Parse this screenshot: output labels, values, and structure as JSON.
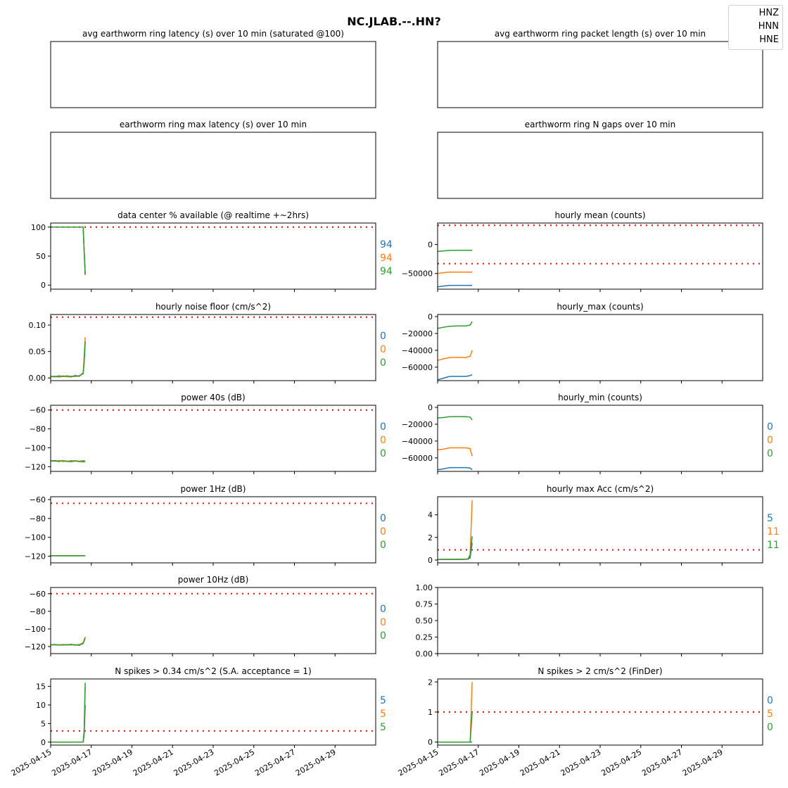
{
  "title": "NC.JLAB.--.HN?",
  "legend": [
    "HNZ",
    "HNN",
    "HNE"
  ],
  "colors": {
    "HNZ": "#1f77b4",
    "HNN": "#ff7f0e",
    "HNE": "#2ca02c",
    "threshold": "#ff0000"
  },
  "x_dates": [
    "2025-04-15",
    "2025-04-17",
    "2025-04-19",
    "2025-04-21",
    "2025-04-23",
    "2025-04-25",
    "2025-04-27",
    "2025-04-29"
  ],
  "chart_data": [
    {
      "type": "line",
      "title": "avg earthworm ring latency (s)   over 10 min (saturated @100)",
      "empty": true,
      "ticks": [],
      "series": [],
      "labels": []
    },
    {
      "type": "line",
      "title": "avg earthworm ring packet length (s)   over 10 min",
      "empty": true,
      "ticks": [],
      "series": [],
      "labels": []
    },
    {
      "type": "line",
      "title": "earthworm ring max latency (s)   over 10 min",
      "empty": true,
      "ticks": [],
      "series": [],
      "labels": []
    },
    {
      "type": "line",
      "title": "earthworm ring N gaps   over 10 min",
      "empty": true,
      "ticks": [],
      "series": [],
      "labels": []
    },
    {
      "type": "line",
      "title": "data center % available (@ realtime +~2hrs)",
      "ylim": [
        -7,
        107
      ],
      "ticks": [
        {
          "v": 0,
          "t": "0"
        },
        {
          "v": 50,
          "t": "50"
        },
        {
          "v": 100,
          "t": "100"
        }
      ],
      "threshold": [
        100
      ],
      "series": [
        {
          "x": [
            0,
            0.25,
            0.5,
            0.75,
            1.0,
            1.25,
            1.5,
            1.6,
            1.65,
            1.7
          ],
          "y": [
            100,
            100,
            100,
            100,
            100,
            100,
            100,
            100,
            60,
            18
          ]
        },
        {
          "x": [
            0,
            0.25,
            0.5,
            0.75,
            1.0,
            1.25,
            1.5,
            1.6,
            1.65,
            1.7
          ],
          "y": [
            100,
            100,
            100,
            100,
            100,
            100,
            100,
            100,
            60,
            18
          ]
        },
        {
          "x": [
            0,
            0.25,
            0.5,
            0.75,
            1.0,
            1.25,
            1.5,
            1.6,
            1.65,
            1.7
          ],
          "y": [
            100,
            100,
            100,
            100,
            100,
            100,
            100,
            100,
            60,
            18
          ]
        }
      ],
      "labels": [
        "94",
        "94",
        "94"
      ]
    },
    {
      "type": "line",
      "title": "hourly mean (counts)",
      "ylim": [
        -77000,
        37000
      ],
      "ticks": [
        {
          "v": -50000,
          "t": "−50000"
        },
        {
          "v": 0,
          "t": "0"
        }
      ],
      "threshold": [
        33000,
        -33000
      ],
      "series": [
        {
          "x": [
            0,
            0.3,
            0.6,
            1.0,
            1.4,
            1.7
          ],
          "y": [
            -73000,
            -71500,
            -70500,
            -70500,
            -70500,
            -70500
          ]
        },
        {
          "x": [
            0,
            0.3,
            0.6,
            1.0,
            1.4,
            1.7
          ],
          "y": [
            -50000,
            -48500,
            -47500,
            -47500,
            -47500,
            -47500
          ]
        },
        {
          "x": [
            0,
            0.3,
            0.6,
            1.0,
            1.4,
            1.7
          ],
          "y": [
            -12000,
            -11000,
            -10200,
            -10000,
            -10000,
            -10000
          ]
        }
      ],
      "labels": []
    },
    {
      "type": "line",
      "title": "hourly noise floor (cm/s^2)",
      "ylim": [
        -0.005,
        0.12
      ],
      "ticks": [
        {
          "v": 0,
          "t": "0.00"
        },
        {
          "v": 0.05,
          "t": "0.05"
        },
        {
          "v": 0.1,
          "t": "0.10"
        }
      ],
      "threshold": [
        0.115
      ],
      "series": [
        {
          "x": [
            0,
            0.2,
            0.4,
            0.6,
            0.8,
            1.0,
            1.2,
            1.4,
            1.6,
            1.65,
            1.7
          ],
          "y": [
            0.003,
            0.002,
            0.004,
            0.003,
            0.003,
            0.002,
            0.005,
            0.003,
            0.009,
            0.03,
            0.07
          ]
        },
        {
          "x": [
            0,
            0.2,
            0.4,
            0.6,
            0.8,
            1.0,
            1.2,
            1.4,
            1.6,
            1.65,
            1.7
          ],
          "y": [
            0.002,
            0.003,
            0.003,
            0.004,
            0.002,
            0.003,
            0.004,
            0.003,
            0.01,
            0.04,
            0.077
          ]
        },
        {
          "x": [
            0,
            0.2,
            0.4,
            0.6,
            0.8,
            1.0,
            1.2,
            1.4,
            1.6,
            1.65,
            1.7
          ],
          "y": [
            0.003,
            0.003,
            0.002,
            0.003,
            0.004,
            0.003,
            0.003,
            0.004,
            0.008,
            0.03,
            0.068
          ]
        }
      ],
      "labels": [
        "0",
        "0",
        "0"
      ]
    },
    {
      "type": "line",
      "title": "hourly_max (counts)",
      "ylim": [
        -76000,
        2500
      ],
      "ticks": [
        {
          "v": -60000,
          "t": "−60000"
        },
        {
          "v": -40000,
          "t": "−40000"
        },
        {
          "v": -20000,
          "t": "−20000"
        },
        {
          "v": 0,
          "t": "0"
        }
      ],
      "threshold": [],
      "series": [
        {
          "x": [
            0,
            0.3,
            0.6,
            1.0,
            1.4,
            1.6,
            1.7
          ],
          "y": [
            -75000,
            -73000,
            -71000,
            -71000,
            -71000,
            -70000,
            -69000
          ]
        },
        {
          "x": [
            0,
            0.3,
            0.6,
            1.0,
            1.4,
            1.6,
            1.7
          ],
          "y": [
            -52000,
            -50000,
            -48500,
            -48500,
            -48500,
            -47000,
            -40000
          ]
        },
        {
          "x": [
            0,
            0.3,
            0.6,
            1.0,
            1.4,
            1.6,
            1.7
          ],
          "y": [
            -14000,
            -12500,
            -11500,
            -11000,
            -11000,
            -10000,
            -6000
          ]
        }
      ],
      "labels": []
    },
    {
      "type": "line",
      "title": "power 40s (dB)",
      "ylim": [
        -125,
        -55
      ],
      "ticks": [
        {
          "v": -120,
          "t": "−120"
        },
        {
          "v": -100,
          "t": "−100"
        },
        {
          "v": -80,
          "t": "−80"
        },
        {
          "v": -60,
          "t": "−60"
        }
      ],
      "threshold": [
        -60
      ],
      "series": [
        {
          "x": [
            0,
            0.2,
            0.4,
            0.6,
            0.8,
            1.0,
            1.2,
            1.4,
            1.6,
            1.7
          ],
          "y": [
            -114,
            -113.5,
            -114.2,
            -113.8,
            -114.5,
            -113.6,
            -114.1,
            -114.4,
            -113.7,
            -114
          ]
        },
        {
          "x": [
            0,
            0.2,
            0.4,
            0.6,
            0.8,
            1.0,
            1.2,
            1.4,
            1.6,
            1.7
          ],
          "y": [
            -113.6,
            -114.3,
            -113.4,
            -114.6,
            -113.9,
            -114.2,
            -113.5,
            -114.8,
            -114,
            -113.8
          ]
        },
        {
          "x": [
            0,
            0.2,
            0.4,
            0.6,
            0.8,
            1.0,
            1.2,
            1.4,
            1.6,
            1.7
          ],
          "y": [
            -114.2,
            -113.8,
            -114.6,
            -113.5,
            -114.3,
            -114.7,
            -113.9,
            -114.2,
            -115,
            -114.4
          ]
        }
      ],
      "labels": [
        "0",
        "0",
        "0"
      ]
    },
    {
      "type": "line",
      "title": "hourly_min (counts)",
      "ylim": [
        -76000,
        2500
      ],
      "ticks": [
        {
          "v": -60000,
          "t": "−60000"
        },
        {
          "v": -40000,
          "t": "−40000"
        },
        {
          "v": -20000,
          "t": "−20000"
        },
        {
          "v": 0,
          "t": "0"
        }
      ],
      "threshold": [],
      "series": [
        {
          "x": [
            0,
            0.3,
            0.6,
            1.0,
            1.4,
            1.6,
            1.7
          ],
          "y": [
            -74000,
            -73000,
            -71500,
            -71500,
            -71500,
            -72000,
            -74000
          ]
        },
        {
          "x": [
            0,
            0.3,
            0.6,
            1.0,
            1.4,
            1.6,
            1.7
          ],
          "y": [
            -50500,
            -49500,
            -48000,
            -48000,
            -48000,
            -49000,
            -58000
          ]
        },
        {
          "x": [
            0,
            0.3,
            0.6,
            1.0,
            1.4,
            1.6,
            1.7
          ],
          "y": [
            -12500,
            -12000,
            -11000,
            -11000,
            -11000,
            -11500,
            -15000
          ]
        }
      ],
      "labels": [
        "0",
        "0",
        "0"
      ]
    },
    {
      "type": "line",
      "title": "power 1Hz (dB)",
      "ylim": [
        -127,
        -57
      ],
      "ticks": [
        {
          "v": -120,
          "t": "−120"
        },
        {
          "v": -100,
          "t": "−100"
        },
        {
          "v": -80,
          "t": "−80"
        },
        {
          "v": -60,
          "t": "−60"
        }
      ],
      "threshold": [
        -64
      ],
      "series": [
        {
          "x": [
            0,
            0.5,
            1.0,
            1.5,
            1.7
          ],
          "y": [
            -119.5,
            -119.5,
            -119.5,
            -119.5,
            -119.5
          ]
        },
        {
          "x": [
            0,
            0.5,
            1.0,
            1.5,
            1.7
          ],
          "y": [
            -119.5,
            -119.5,
            -119.5,
            -119.5,
            -119.5
          ]
        },
        {
          "x": [
            0,
            0.5,
            1.0,
            1.5,
            1.7
          ],
          "y": [
            -119.5,
            -119.5,
            -119.5,
            -119.5,
            -119.5
          ]
        }
      ],
      "labels": [
        "0",
        "0",
        "0"
      ]
    },
    {
      "type": "line",
      "title": "hourly max Acc (cm/s^2)",
      "ylim": [
        -0.25,
        5.6
      ],
      "ticks": [
        {
          "v": 0,
          "t": "0"
        },
        {
          "v": 2,
          "t": "2"
        },
        {
          "v": 4,
          "t": "4"
        }
      ],
      "threshold": [
        0.9
      ],
      "series": [
        {
          "x": [
            0,
            0.3,
            0.6,
            0.9,
            1.2,
            1.5,
            1.6,
            1.7
          ],
          "y": [
            0.05,
            0.06,
            0.05,
            0.07,
            0.06,
            0.08,
            0.2,
            1.5
          ]
        },
        {
          "x": [
            0,
            0.3,
            0.6,
            0.9,
            1.2,
            1.5,
            1.6,
            1.7
          ],
          "y": [
            0.06,
            0.05,
            0.07,
            0.06,
            0.05,
            0.1,
            0.5,
            5.3
          ]
        },
        {
          "x": [
            0,
            0.3,
            0.6,
            0.9,
            1.2,
            1.5,
            1.6,
            1.7
          ],
          "y": [
            0.05,
            0.06,
            0.06,
            0.05,
            0.07,
            0.09,
            0.4,
            2.1
          ]
        }
      ],
      "labels": [
        "5",
        "11",
        "11"
      ]
    },
    {
      "type": "line",
      "title": "power 10Hz (dB)",
      "ylim": [
        -128,
        -53
      ],
      "ticks": [
        {
          "v": -120,
          "t": "−120"
        },
        {
          "v": -100,
          "t": "−100"
        },
        {
          "v": -80,
          "t": "−80"
        },
        {
          "v": -60,
          "t": "−60"
        }
      ],
      "threshold": [
        -60
      ],
      "series": [
        {
          "x": [
            0,
            0.2,
            0.4,
            0.6,
            0.8,
            1.0,
            1.2,
            1.4,
            1.6,
            1.7
          ],
          "y": [
            -118,
            -117.6,
            -118.3,
            -117.8,
            -118.1,
            -117.5,
            -118.4,
            -117.9,
            -116,
            -110
          ]
        },
        {
          "x": [
            0,
            0.2,
            0.4,
            0.6,
            0.8,
            1.0,
            1.2,
            1.4,
            1.6,
            1.7
          ],
          "y": [
            -117.7,
            -118.2,
            -117.9,
            -118.5,
            -117.6,
            -118.2,
            -117.8,
            -118.3,
            -115.5,
            -109
          ]
        },
        {
          "x": [
            0,
            0.2,
            0.4,
            0.6,
            0.8,
            1.0,
            1.2,
            1.4,
            1.6,
            1.7
          ],
          "y": [
            -118.2,
            -117.9,
            -118.4,
            -117.7,
            -118.3,
            -117.8,
            -118.1,
            -118.6,
            -116.5,
            -110.5
          ]
        }
      ],
      "labels": [
        "0",
        "0",
        "0"
      ]
    },
    {
      "type": "line",
      "title": "",
      "ylim": [
        0,
        1
      ],
      "ticks": [
        {
          "v": 0,
          "t": "0.00"
        },
        {
          "v": 0.25,
          "t": "0.25"
        },
        {
          "v": 0.5,
          "t": "0.50"
        },
        {
          "v": 0.75,
          "t": "0.75"
        },
        {
          "v": 1,
          "t": "1.00"
        }
      ],
      "threshold": [],
      "series": [],
      "labels": []
    },
    {
      "type": "line",
      "title": "N spikes > 0.34 cm/s^2 (S.A. acceptance = 1)",
      "ylim": [
        -0.8,
        17
      ],
      "ticks": [
        {
          "v": 0,
          "t": "0"
        },
        {
          "v": 5,
          "t": "5"
        },
        {
          "v": 10,
          "t": "10"
        },
        {
          "v": 15,
          "t": "15"
        }
      ],
      "threshold": [
        3
      ],
      "series": [
        {
          "x": [
            0,
            0.4,
            0.8,
            1.2,
            1.5,
            1.6,
            1.65,
            1.7
          ],
          "y": [
            0,
            0,
            0,
            0,
            0,
            0,
            2,
            10
          ]
        },
        {
          "x": [
            0,
            0.4,
            0.8,
            1.2,
            1.5,
            1.6,
            1.65,
            1.7
          ],
          "y": [
            0,
            0,
            0,
            0,
            0,
            0,
            3,
            15
          ]
        },
        {
          "x": [
            0,
            0.4,
            0.8,
            1.2,
            1.5,
            1.6,
            1.65,
            1.7
          ],
          "y": [
            0,
            0,
            0,
            0,
            0,
            0,
            3,
            16
          ]
        }
      ],
      "labels": [
        "5",
        "5",
        "5"
      ]
    },
    {
      "type": "line",
      "title": "N spikes > 2 cm/s^2 (FinDer)",
      "ylim": [
        -0.1,
        2.1
      ],
      "ticks": [
        {
          "v": 0,
          "t": "0"
        },
        {
          "v": 1,
          "t": "1"
        },
        {
          "v": 2,
          "t": "2"
        }
      ],
      "threshold": [
        1
      ],
      "series": [
        {
          "x": [
            0,
            0.4,
            0.8,
            1.2,
            1.6,
            1.7
          ],
          "y": [
            0,
            0,
            0,
            0,
            0,
            0
          ]
        },
        {
          "x": [
            0,
            0.4,
            0.8,
            1.2,
            1.6,
            1.7
          ],
          "y": [
            0,
            0,
            0,
            0,
            0,
            2
          ]
        },
        {
          "x": [
            0,
            0.4,
            0.8,
            1.2,
            1.6,
            1.7
          ],
          "y": [
            0,
            0,
            0,
            0,
            0,
            1
          ]
        }
      ],
      "labels": [
        "0",
        "5",
        "0"
      ]
    }
  ]
}
